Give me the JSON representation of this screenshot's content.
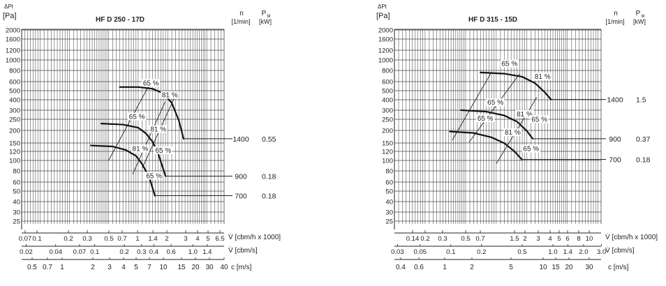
{
  "chart_data": [
    {
      "type": "line",
      "title": "HF D 250 - 17D",
      "y_axis": {
        "label": "ΔPt",
        "unit": "[Pa]",
        "scale": "log",
        "range": [
          20,
          2000
        ],
        "tick_labels": [
          "2000",
          "1600",
          "1200",
          "1000",
          "800",
          "600",
          "500",
          "400",
          "300",
          "250",
          "200",
          "150",
          "120",
          "100",
          "80",
          "60",
          "50",
          "40",
          "30",
          "25"
        ]
      },
      "x_axes": [
        {
          "label": "V̇ [cbm/h x 1000]",
          "range": [
            0.065,
            7.5
          ],
          "tick_labels": [
            "0.07",
            "0.1",
            "0.2",
            "0.3",
            "0.5",
            "0.7",
            "1",
            "1.4",
            "2",
            "3",
            "4",
            "5",
            "6.5"
          ]
        },
        {
          "label": "V̇ [cbm/s]",
          "range": [
            0.018,
            2.08
          ],
          "tick_labels": [
            "0.02",
            "0.04",
            "0.07",
            "0.1",
            "0.2",
            "0.3",
            "0.4",
            "0.6",
            "1.0",
            "1.4"
          ]
        },
        {
          "label": "c [m/s]",
          "tick_labels": [
            "0.5",
            "0.7",
            "1",
            "2",
            "3",
            "4",
            "5",
            "7",
            "10",
            "15",
            "20",
            "30",
            "40"
          ]
        }
      ],
      "grid": true,
      "col_headers": {
        "n": "n",
        "n_unit": "[1/min]",
        "p": "P",
        "p_sub": "M",
        "p_unit": "[kW]"
      },
      "speeds": [
        {
          "n": "1400",
          "p": "0.55"
        },
        {
          "n": "900",
          "p": "0.18"
        },
        {
          "n": "700",
          "p": "0.18"
        }
      ],
      "series": [
        {
          "speed": "1400",
          "label_y": 150,
          "x": [
            0.65,
            1.0,
            1.4,
            1.8,
            2.2,
            2.6,
            2.9
          ],
          "y": [
            510,
            510,
            490,
            440,
            350,
            230,
            150
          ]
        },
        {
          "speed": "900",
          "label_y": 62,
          "x": [
            0.42,
            0.7,
            1.0,
            1.2,
            1.4,
            1.6,
            1.9
          ],
          "y": [
            215,
            210,
            195,
            170,
            140,
            105,
            62
          ]
        },
        {
          "speed": "700",
          "label_y": 39,
          "x": [
            0.33,
            0.55,
            0.75,
            0.95,
            1.1,
            1.3,
            1.48
          ],
          "y": [
            128,
            125,
            115,
            100,
            82,
            60,
            39
          ]
        }
      ],
      "efficiency_lines": [
        {
          "x": [
            0.5,
            1.3
          ],
          "y": [
            90,
            540
          ]
        },
        {
          "x": [
            0.88,
            1.88
          ],
          "y": [
            65,
            360
          ]
        },
        {
          "x": [
            1.1,
            2.5
          ],
          "y": [
            75,
            460
          ]
        }
      ],
      "efficiency_labels": [
        {
          "text": "65 %",
          "x": 1.35,
          "y": 530
        },
        {
          "text": "81 %",
          "x": 2.1,
          "y": 400
        },
        {
          "text": "65 %",
          "x": 0.97,
          "y": 240
        },
        {
          "text": "81 %",
          "x": 1.6,
          "y": 178
        },
        {
          "text": "65 %",
          "x": 1.8,
          "y": 108
        },
        {
          "text": "81 %",
          "x": 1.05,
          "y": 112
        },
        {
          "text": "65 %",
          "x": 1.45,
          "y": 59
        }
      ]
    },
    {
      "type": "line",
      "title": "HF D 315 - 15D",
      "y_axis": {
        "label": "ΔPt",
        "unit": "[Pa]",
        "scale": "log",
        "range": [
          20,
          2000
        ],
        "tick_labels": [
          "2000",
          "1600",
          "1200",
          "1000",
          "800",
          "600",
          "500",
          "400",
          "300",
          "250",
          "200",
          "150",
          "120",
          "100",
          "80",
          "60",
          "50",
          "40",
          "30",
          "25"
        ]
      },
      "x_axes": [
        {
          "label": "V̇ [cbm/h x 1000]",
          "range": [
            0.1,
            10.7
          ],
          "tick_labels": [
            "0.14",
            "0.2",
            "0.3",
            "0.5",
            "0.7",
            "1.5",
            "2",
            "3",
            "4",
            "5",
            "6",
            "8",
            "10"
          ]
        },
        {
          "label": "V̇ [cbm/s]",
          "range": [
            0.028,
            2.97
          ],
          "tick_labels": [
            "0.03",
            "0.05",
            "0.1",
            "0.2",
            "0.5",
            "1.0",
            "1.4",
            "2.0",
            "3.0"
          ]
        },
        {
          "label": "c [m/s]",
          "tick_labels": [
            "0.4",
            "0.6",
            "1",
            "2",
            "5",
            "10",
            "15",
            "20",
            "30"
          ]
        }
      ],
      "grid": true,
      "col_headers": {
        "n": "n",
        "n_unit": "[1/min]",
        "p": "P",
        "p_sub": "M",
        "p_unit": "[kW]"
      },
      "speeds": [
        {
          "n": "1400",
          "p": "1.5"
        },
        {
          "n": "900",
          "p": "0.37"
        },
        {
          "n": "700",
          "p": "0.18"
        }
      ],
      "series": [
        {
          "speed": "1400",
          "label_y": 380,
          "x": [
            0.7,
            1.2,
            1.8,
            2.4,
            3.0,
            3.45
          ],
          "y": [
            720,
            700,
            650,
            560,
            450,
            380
          ]
        },
        {
          "speed": "900",
          "label_y": 150,
          "x": [
            0.45,
            0.8,
            1.2,
            1.6,
            2.0,
            2.28
          ],
          "y": [
            295,
            285,
            260,
            225,
            180,
            150
          ]
        },
        {
          "speed": "700",
          "label_y": 92,
          "x": [
            0.35,
            0.6,
            0.9,
            1.2,
            1.5,
            1.78
          ],
          "y": [
            178,
            172,
            155,
            135,
            112,
            92
          ]
        }
      ],
      "efficiency_lines": [
        {
          "x": [
            0.37,
            0.9
          ],
          "y": [
            145,
            730
          ]
        },
        {
          "x": [
            0.54,
            1.7
          ],
          "y": [
            138,
            700
          ]
        },
        {
          "x": [
            1.0,
            2.5
          ],
          "y": [
            83,
            400
          ]
        }
      ],
      "efficiency_labels": [
        {
          "text": "65 %",
          "x": 1.35,
          "y": 840
        },
        {
          "text": "81 %",
          "x": 2.85,
          "y": 620
        },
        {
          "text": "65 %",
          "x": 0.98,
          "y": 335
        },
        {
          "text": "81 %",
          "x": 1.9,
          "y": 255
        },
        {
          "text": "65 %",
          "x": 0.78,
          "y": 230
        },
        {
          "text": "81 %",
          "x": 1.45,
          "y": 165
        },
        {
          "text": "65 %",
          "x": 2.65,
          "y": 225
        },
        {
          "text": "65 %",
          "x": 2.2,
          "y": 112
        }
      ]
    }
  ]
}
